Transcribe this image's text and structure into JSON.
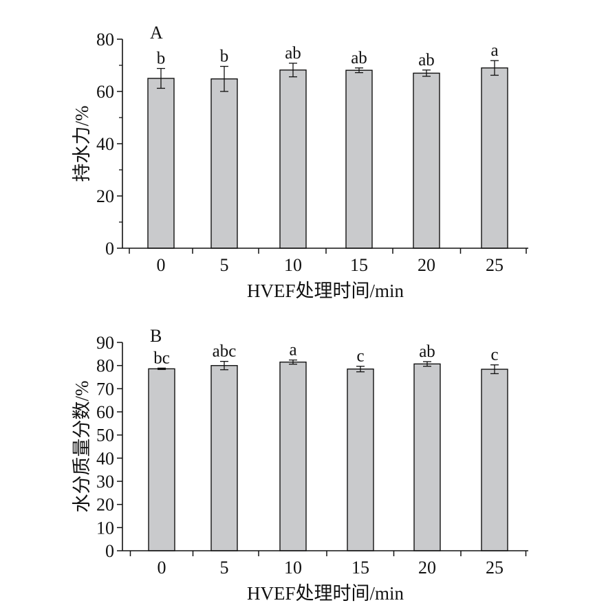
{
  "colors": {
    "bar_fill": "#c9cacc",
    "axis": "#111111"
  },
  "chart_data": [
    {
      "type": "bar",
      "panel_label": "A",
      "categories": [
        "0",
        "5",
        "10",
        "15",
        "20",
        "25"
      ],
      "values": [
        65.0,
        64.8,
        68.2,
        68.1,
        67.0,
        69.0
      ],
      "errors": [
        3.8,
        4.8,
        2.6,
        0.9,
        1.2,
        2.8
      ],
      "significance": [
        "b",
        "b",
        "ab",
        "ab",
        "ab",
        "a"
      ],
      "xlabel": "HVEF处理时间/min",
      "ylabel": "持水力/%",
      "ylim": [
        0,
        80
      ],
      "yticks": [
        0,
        20,
        40,
        60,
        80
      ]
    },
    {
      "type": "bar",
      "panel_label": "B",
      "categories": [
        "0",
        "5",
        "10",
        "15",
        "20",
        "25"
      ],
      "values": [
        78.6,
        80.0,
        81.5,
        78.5,
        80.7,
        78.4
      ],
      "errors": [
        0.3,
        1.8,
        0.9,
        1.2,
        1.0,
        1.9
      ],
      "significance": [
        "bc",
        "abc",
        "a",
        "c",
        "ab",
        "c"
      ],
      "xlabel": "HVEF处理时间/min",
      "ylabel": "水分质量分数/%",
      "ylim": [
        0,
        90
      ],
      "yticks": [
        0,
        10,
        20,
        30,
        40,
        50,
        60,
        70,
        80,
        90
      ]
    }
  ]
}
